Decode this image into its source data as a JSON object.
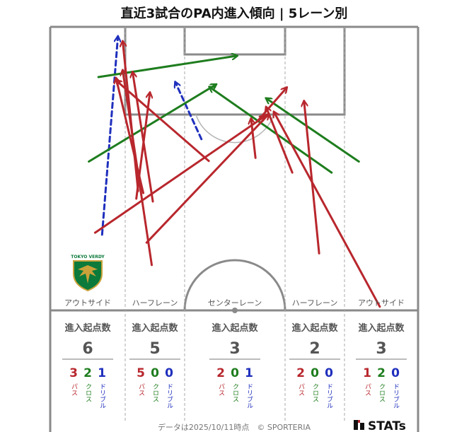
{
  "title": "直近3試合のPA内進入傾向 | 5レーン別",
  "footer": {
    "credit": "データは2025/10/11時点　© SPORTERIA",
    "brand": "STATs"
  },
  "legend_colors": {
    "pass": "#b8272d",
    "cross": "#1e7d1e",
    "dribble": "#1f2fbd"
  },
  "type_labels": {
    "pass": "パス",
    "cross": "クロス",
    "dribble": "ドリブル"
  },
  "count_header": "進入起点数",
  "logo": {
    "text": "TOKYO VERDY",
    "colors": [
      "#0b7a3b",
      "#c9a23a"
    ]
  },
  "lanes": [
    {
      "name": "アウトサイド",
      "total": "6",
      "pass": "3",
      "cross": "2",
      "dribble": "1"
    },
    {
      "name": "ハーフレーン",
      "total": "5",
      "pass": "5",
      "cross": "0",
      "dribble": "0"
    },
    {
      "name": "センターレーン",
      "total": "3",
      "pass": "2",
      "cross": "0",
      "dribble": "1"
    },
    {
      "name": "ハーフレーン",
      "total": "2",
      "pass": "2",
      "cross": "0",
      "dribble": "0"
    },
    {
      "name": "アウトサイド",
      "total": "3",
      "pass": "1",
      "cross": "2",
      "dribble": "0"
    }
  ],
  "arrows": [
    {
      "type": "dribble",
      "from": [
        0.141,
        0.733
      ],
      "to": [
        0.184,
        0.034
      ]
    },
    {
      "type": "dribble",
      "from": [
        0.411,
        0.396
      ],
      "to": [
        0.34,
        0.195
      ]
    },
    {
      "type": "cross",
      "from": [
        0.131,
        0.177
      ],
      "to": [
        0.508,
        0.102
      ]
    },
    {
      "type": "cross",
      "from": [
        0.105,
        0.475
      ],
      "to": [
        0.451,
        0.203
      ]
    },
    {
      "type": "cross",
      "from": [
        0.765,
        0.514
      ],
      "to": [
        0.433,
        0.212
      ]
    },
    {
      "type": "cross",
      "from": [
        0.839,
        0.475
      ],
      "to": [
        0.587,
        0.252
      ]
    },
    {
      "type": "pass",
      "from": [
        0.239,
        0.579
      ],
      "to": [
        0.197,
        0.051
      ]
    },
    {
      "type": "pass",
      "from": [
        0.276,
        0.84
      ],
      "to": [
        0.197,
        0.153
      ]
    },
    {
      "type": "pass",
      "from": [
        0.234,
        0.606
      ],
      "to": [
        0.271,
        0.232
      ]
    },
    {
      "type": "pass",
      "from": [
        0.279,
        0.616
      ],
      "to": [
        0.224,
        0.16
      ]
    },
    {
      "type": "pass",
      "from": [
        0.253,
        0.586
      ],
      "to": [
        0.179,
        0.181
      ]
    },
    {
      "type": "pass",
      "from": [
        0.431,
        0.473
      ],
      "to": [
        0.179,
        0.189
      ]
    },
    {
      "type": "pass",
      "from": [
        0.122,
        0.726
      ],
      "to": [
        0.584,
        0.315
      ]
    },
    {
      "type": "pass",
      "from": [
        0.262,
        0.761
      ],
      "to": [
        0.594,
        0.308
      ]
    },
    {
      "type": "pass",
      "from": [
        0.558,
        0.462
      ],
      "to": [
        0.546,
        0.324
      ]
    },
    {
      "type": "pass",
      "from": [
        0.658,
        0.514
      ],
      "to": [
        0.587,
        0.283
      ]
    },
    {
      "type": "pass",
      "from": [
        0.731,
        0.799
      ],
      "to": [
        0.69,
        0.262
      ]
    },
    {
      "type": "pass",
      "from": [
        0.896,
        0.987
      ],
      "to": [
        0.608,
        0.3
      ]
    },
    {
      "type": "pass",
      "from": [
        0.563,
        0.333
      ],
      "to": [
        0.643,
        0.214
      ]
    }
  ]
}
